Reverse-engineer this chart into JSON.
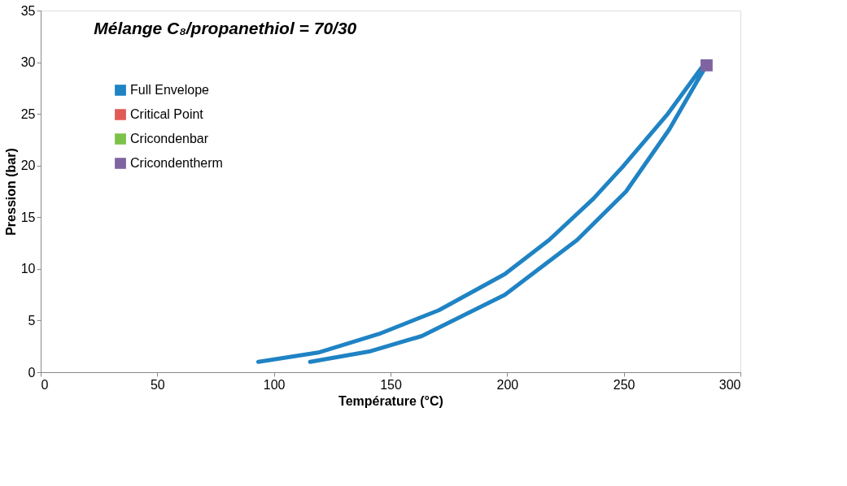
{
  "chart_data": {
    "type": "line",
    "title": "Mélange C₈/propanethiol = 70/30",
    "xlabel": "Température (°C)",
    "ylabel": "Pression  (bar)",
    "xlim": [
      0,
      300
    ],
    "xticks": [
      0,
      50,
      100,
      150,
      200,
      250,
      300
    ],
    "ylim": [
      0,
      35
    ],
    "yticks": [
      0,
      5,
      10,
      15,
      20,
      25,
      30,
      35
    ],
    "grid": false,
    "legend": "left",
    "series": [
      {
        "name": "Full Envelope",
        "color": "#1f83c4",
        "marker": "none",
        "x": [
          93.3,
          119,
          145,
          170.7,
          199,
          218,
          237,
          250,
          268.5,
          283.4,
          285.5,
          282.3,
          269.5,
          251,
          230,
          199,
          163.4,
          140.8,
          115.5
        ],
        "values": [
          1.0,
          1.9,
          3.7,
          6.0,
          9.5,
          12.8,
          16.8,
          20.0,
          24.9,
          29.5,
          29.7,
          28.5,
          23.5,
          17.5,
          12.8,
          7.5,
          3.5,
          2.0,
          1.0
        ]
      },
      {
        "name": "Critical Point",
        "type": "scatter",
        "color": "#e05a56",
        "marker": "square",
        "x": [
          null
        ],
        "values": [
          null
        ]
      },
      {
        "name": "Cricondenbar",
        "type": "scatter",
        "color": "#7dc24a",
        "marker": "square",
        "x": [
          null
        ],
        "values": [
          null
        ]
      },
      {
        "name": "Cricondentherm",
        "type": "scatter",
        "color": "#8064a2",
        "marker": "square",
        "x": [
          285.5
        ],
        "values": [
          29.7
        ]
      }
    ]
  }
}
